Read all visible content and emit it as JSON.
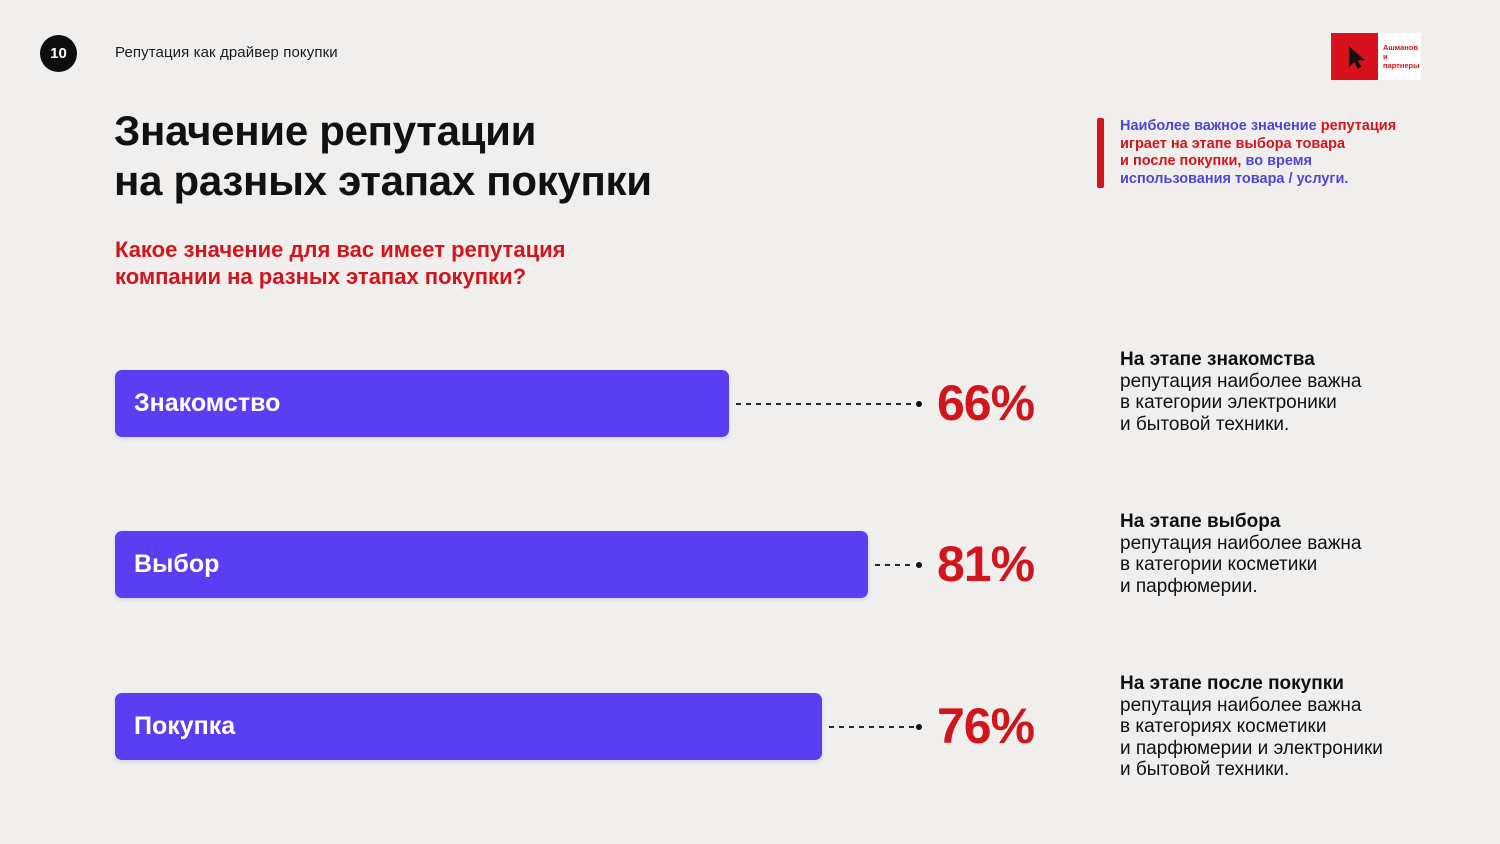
{
  "header": {
    "page_number": "10",
    "title": "Репутация как драйвер покупки",
    "logo": {
      "icon": "cursor-a-logo",
      "text_lines": [
        "Ашманов",
        "и партнеры"
      ]
    }
  },
  "main": {
    "title_lines": [
      "Значение репутации",
      "на разных этапах покупки"
    ],
    "question_lines": [
      "Какое значение для вас имеет репутация",
      "компании на разных этапах покупки?"
    ]
  },
  "callout": {
    "lines": [
      [
        {
          "t": "Наиболее важное значение ",
          "c": "blue"
        },
        {
          "t": "репутация",
          "c": "red"
        }
      ],
      [
        {
          "t": "играет на этапе выбора товара",
          "c": "red"
        }
      ],
      [
        {
          "t": "и после покупки,",
          "c": "red"
        },
        {
          "t": " во время",
          "c": "blue"
        }
      ],
      [
        {
          "t": "использования товара / услуги.",
          "c": "blue"
        }
      ]
    ]
  },
  "chart_data": {
    "type": "bar",
    "orientation": "horizontal",
    "title": "Значение репутации на разных этапах покупки",
    "categories": [
      "Знакомство",
      "Выбор",
      "Покупка"
    ],
    "values": [
      66,
      81,
      76
    ],
    "value_labels": [
      "66%",
      "81%",
      "76%"
    ],
    "xlim": [
      0,
      100
    ],
    "grid": false,
    "legend": false,
    "bar_color": "#5a3ef2",
    "value_label_color": "#d0151c"
  },
  "annotations": [
    {
      "title": "На этапе знакомства",
      "body_lines": [
        "репутация наиболее важна",
        "в категории электроники",
        "и бытовой техники."
      ]
    },
    {
      "title": "На этапе выбора",
      "body_lines": [
        "репутация наиболее важна",
        "в категории косметики",
        "и парфюмерии."
      ]
    },
    {
      "title": "На этапе после покупки",
      "body_lines": [
        "репутация наиболее важна",
        "в категориях косметики",
        "и парфюмерии и электроники",
        "и бытовой техники."
      ]
    }
  ],
  "colors": {
    "background": "#f0efee",
    "bar_purple": "#5a3ef2",
    "accent_red": "#d0151c",
    "accent_blue": "#4f46cf",
    "text_black": "#111111"
  }
}
